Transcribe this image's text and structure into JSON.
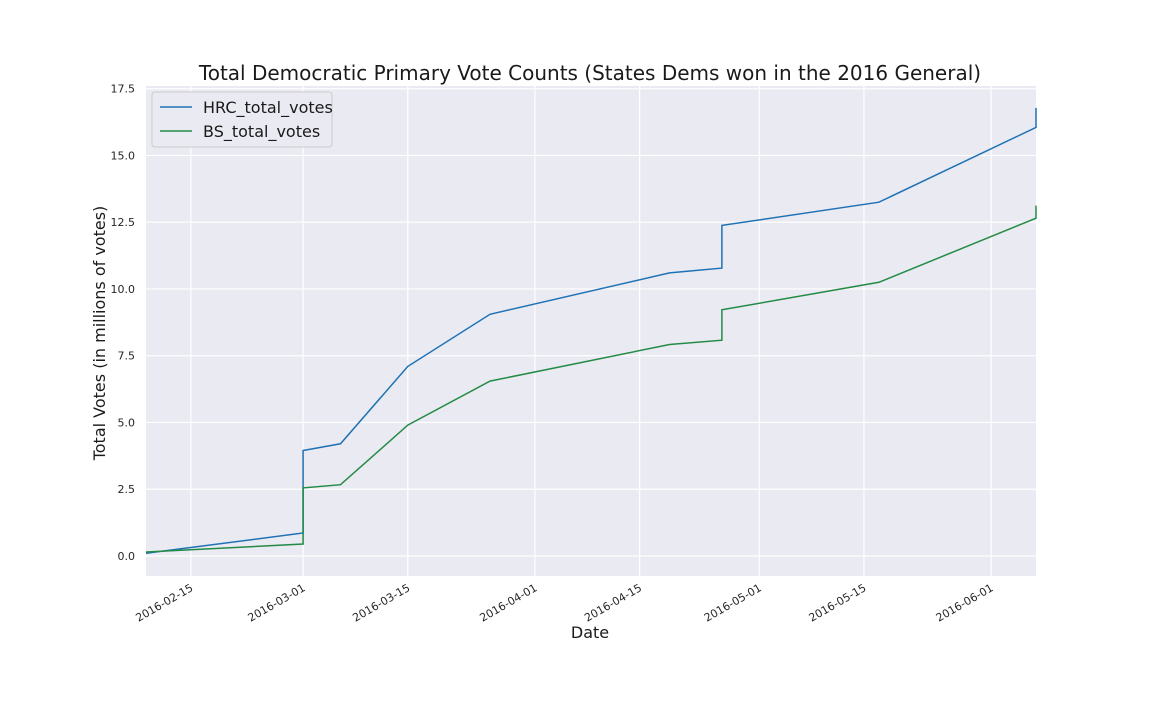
{
  "chart_data": {
    "type": "line",
    "title": "Total Democratic Primary Vote Counts (States Dems won in the 2016 General)",
    "xlabel": "Date",
    "ylabel": "Total Votes (in millions of votes)",
    "x_axis_type": "date",
    "xlim": [
      "2016-02-09",
      "2016-06-07"
    ],
    "ylim": [
      -0.75,
      17.6
    ],
    "x_ticks": [
      "2016-02-15",
      "2016-03-01",
      "2016-03-15",
      "2016-04-01",
      "2016-04-15",
      "2016-05-01",
      "2016-05-15",
      "2016-06-01"
    ],
    "y_ticks": [
      0.0,
      2.5,
      5.0,
      7.5,
      10.0,
      12.5,
      15.0,
      17.5
    ],
    "y_tick_labels": [
      "0.0",
      "2.5",
      "5.0",
      "7.5",
      "10.0",
      "12.5",
      "15.0",
      "17.5"
    ],
    "grid": true,
    "legend_position": "top-left",
    "series": [
      {
        "name": "HRC_total_votes",
        "color": "#1f72b5",
        "points": [
          [
            "2016-02-09",
            0.1
          ],
          [
            "2016-03-01",
            0.86
          ],
          [
            "2016-03-01",
            3.95
          ],
          [
            "2016-03-06",
            4.2
          ],
          [
            "2016-03-15",
            7.1
          ],
          [
            "2016-03-26",
            9.05
          ],
          [
            "2016-04-19",
            10.6
          ],
          [
            "2016-04-26",
            10.78
          ],
          [
            "2016-04-26",
            12.38
          ],
          [
            "2016-05-17",
            13.25
          ],
          [
            "2016-06-07",
            16.05
          ],
          [
            "2016-06-07",
            16.78
          ]
        ]
      },
      {
        "name": "BS_total_votes",
        "color": "#238b45",
        "points": [
          [
            "2016-02-09",
            0.15
          ],
          [
            "2016-03-01",
            0.45
          ],
          [
            "2016-03-01",
            2.55
          ],
          [
            "2016-03-06",
            2.67
          ],
          [
            "2016-03-15",
            4.9
          ],
          [
            "2016-03-26",
            6.55
          ],
          [
            "2016-04-19",
            7.92
          ],
          [
            "2016-04-26",
            8.08
          ],
          [
            "2016-04-26",
            9.22
          ],
          [
            "2016-05-17",
            10.25
          ],
          [
            "2016-06-07",
            12.65
          ],
          [
            "2016-06-07",
            13.12
          ]
        ]
      }
    ]
  }
}
